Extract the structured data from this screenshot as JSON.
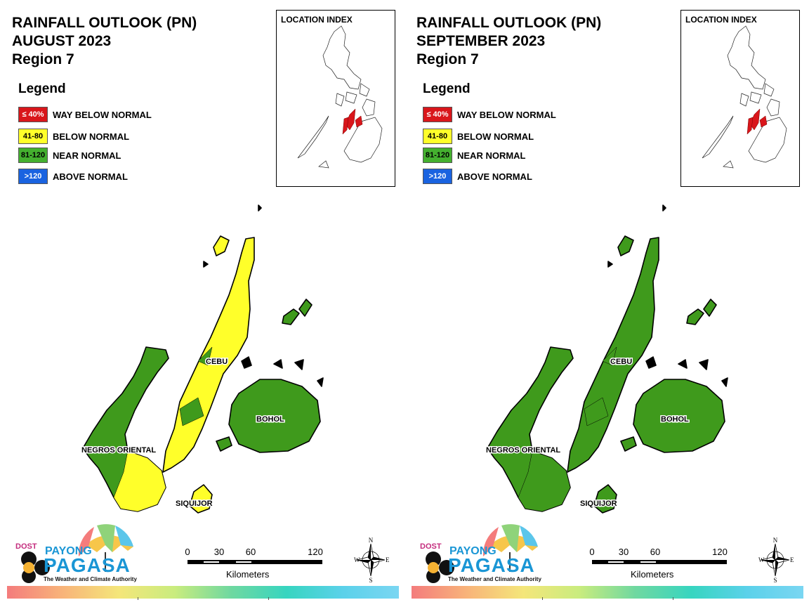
{
  "panels": [
    {
      "title_line1": "RAINFALL OUTLOOK (PN)",
      "title_line2": "AUGUST 2023",
      "title_line3": "Region 7",
      "legend_title": "Legend",
      "legend": [
        {
          "range": "≤ 40%",
          "label": "WAY BELOW NORMAL",
          "color": "#d9161b",
          "text_color": "#ffffff"
        },
        {
          "range": "41-80",
          "label": "BELOW NORMAL",
          "color": "#ffff2a",
          "text_color": "#000000"
        },
        {
          "range": "81-120",
          "label": "NEAR NORMAL",
          "color": "#44b02f",
          "text_color": "#000000"
        },
        {
          "range": ">120",
          "label": "ABOVE NORMAL",
          "color": "#1a63e0",
          "text_color": "#ffffff"
        }
      ],
      "location_index_title": "LOCATION INDEX",
      "province_labels": {
        "cebu": "CEBU",
        "bohol": "BOHOL",
        "negros": "NEGROS ORIENTAL",
        "siquijor": "SIQUIJOR"
      },
      "province_colors": {
        "cebu": "#ffff2a",
        "bohol": "#3f9a1c",
        "negros": "#3f9a1c",
        "negros_south": "#ffff2a",
        "siquijor": "#ffff2a",
        "camotes": "#3f9a1c",
        "bantayan": "#ffff2a"
      },
      "logo": {
        "dost": "DOST",
        "payong": "PAYONG",
        "pagasa": "PAGASA",
        "tagline": "The Weather and Climate Authority"
      },
      "scale": {
        "ticks": [
          "0",
          "30",
          "60",
          "120"
        ],
        "unit": "Kilometers"
      },
      "compass": {
        "n": "N",
        "e": "E",
        "s": "S",
        "w": "W"
      }
    },
    {
      "title_line1": "RAINFALL OUTLOOK (PN)",
      "title_line2": "SEPTEMBER 2023",
      "title_line3": "Region 7",
      "legend_title": "Legend",
      "legend": [
        {
          "range": "≤ 40%",
          "label": "WAY BELOW NORMAL",
          "color": "#d9161b",
          "text_color": "#ffffff"
        },
        {
          "range": "41-80",
          "label": "BELOW NORMAL",
          "color": "#ffff2a",
          "text_color": "#000000"
        },
        {
          "range": "81-120",
          "label": "NEAR NORMAL",
          "color": "#44b02f",
          "text_color": "#000000"
        },
        {
          "range": ">120",
          "label": "ABOVE NORMAL",
          "color": "#1a63e0",
          "text_color": "#ffffff"
        }
      ],
      "location_index_title": "LOCATION INDEX",
      "province_labels": {
        "cebu": "CEBU",
        "bohol": "BOHOL",
        "negros": "NEGROS ORIENTAL",
        "siquijor": "SIQUIJOR"
      },
      "province_colors": {
        "cebu": "#3f9a1c",
        "bohol": "#3f9a1c",
        "negros": "#3f9a1c",
        "negros_south": "#3f9a1c",
        "siquijor": "#3f9a1c",
        "camotes": "#3f9a1c",
        "bantayan": "#3f9a1c"
      },
      "logo": {
        "dost": "DOST",
        "payong": "PAYONG",
        "pagasa": "PAGASA",
        "tagline": "The Weather and Climate Authority"
      },
      "scale": {
        "ticks": [
          "0",
          "30",
          "60",
          "120"
        ],
        "unit": "Kilometers"
      },
      "compass": {
        "n": "N",
        "e": "E",
        "s": "S",
        "w": "W"
      }
    }
  ]
}
